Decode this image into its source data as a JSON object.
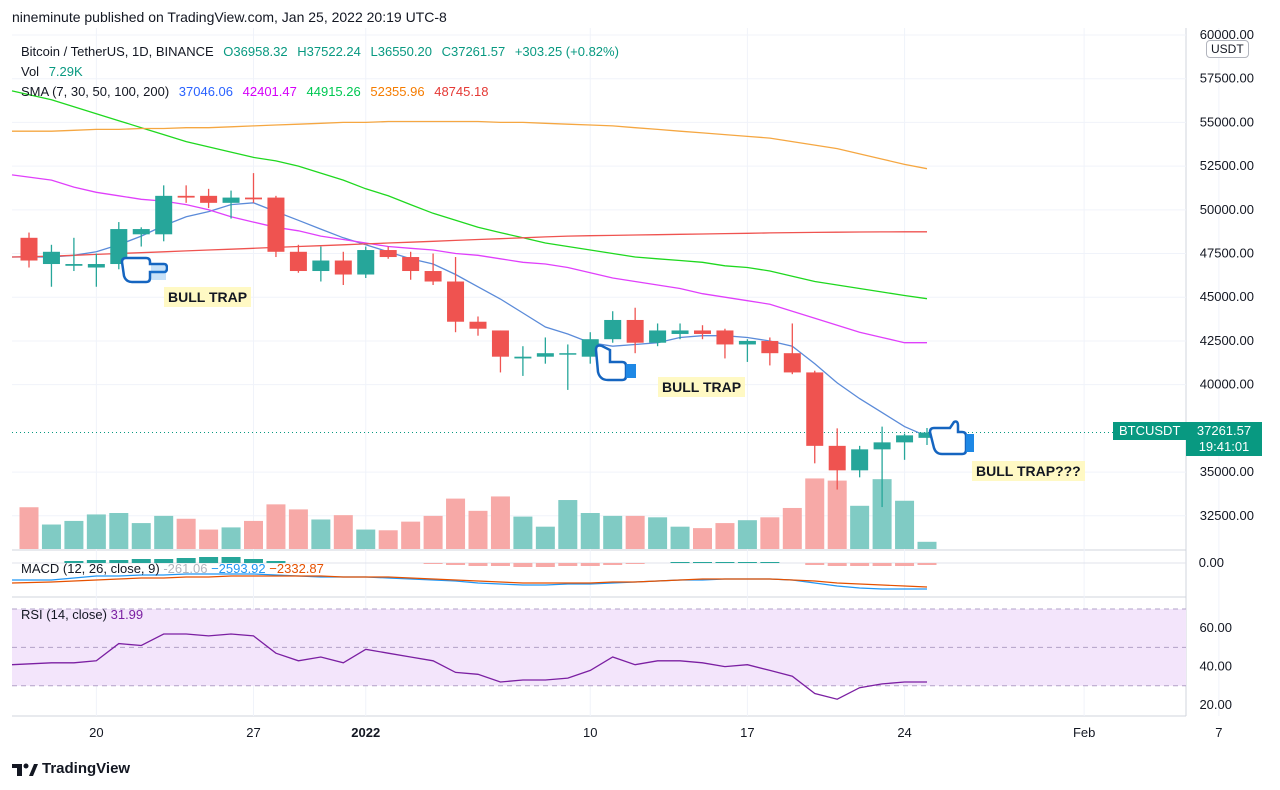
{
  "header": {
    "publisher": "nineminute published on TradingView.com, Jan 25, 2022 20:19 UTC-8"
  },
  "legend": {
    "symbol": "Bitcoin / TetherUS, 1D, BINANCE",
    "o": "O36958.32",
    "h": "H37522.24",
    "l": "L36550.20",
    "c": "C37261.57",
    "change": "+303.25 (+0.82%)",
    "vol_label": "Vol",
    "vol_value": "7.29K",
    "sma_label": "SMA (7, 30, 50, 100, 200)",
    "sma_values": [
      "37046.06",
      "42401.47",
      "44915.26",
      "52355.96",
      "48745.18"
    ]
  },
  "colors": {
    "up": "#26a69a",
    "down": "#ef5350",
    "up_vol": "#80cbc4",
    "down_vol": "#f7a9a7",
    "sma7": "#5b8bd9",
    "sma30": "#e040fb",
    "sma50": "#1fd81f",
    "sma100": "#f5a742",
    "sma200": "#ef5350",
    "macd": "#2196f3",
    "signal": "#e65100",
    "rsi": "#7b1fa2",
    "rsi_band": "#f3e5fb"
  },
  "macd": {
    "label": "MACD (12, 26, close, 9)",
    "hist": "-261.06",
    "macd": "−2593.92",
    "signal": "−2332.87"
  },
  "rsi": {
    "label": "RSI (14, close)",
    "value": "31.99"
  },
  "currency": "USDT",
  "last_price": {
    "symbol": "BTCUSDT",
    "price": "37261.57",
    "countdown": "19:41:01"
  },
  "annotations": [
    "BULL TRAP",
    "BULL TRAP",
    "BULL TRAP???"
  ],
  "footer": {
    "brand": "TradingView"
  },
  "chart_data": {
    "type": "candlestick",
    "title": "Bitcoin / TetherUS, 1D, BINANCE",
    "x_ticks": [
      "20",
      "27",
      "2022",
      "10",
      "17",
      "24",
      "Feb",
      "7"
    ],
    "x_tick_index": [
      3,
      10,
      15,
      25,
      32,
      39,
      47,
      53
    ],
    "price_ticks": [
      "60000.00",
      "57500.00",
      "55000.00",
      "52500.00",
      "50000.00",
      "47500.00",
      "45000.00",
      "42500.00",
      "40000.00",
      "35000.00",
      "32500.00"
    ],
    "ylim": [
      30200,
      60400
    ],
    "candles": [
      {
        "o": 48400,
        "h": 48700,
        "l": 46700,
        "c": 47100
      },
      {
        "o": 46900,
        "h": 48000,
        "l": 45600,
        "c": 47600
      },
      {
        "o": 46800,
        "h": 48400,
        "l": 46500,
        "c": 46900
      },
      {
        "o": 46700,
        "h": 47500,
        "l": 45600,
        "c": 46900
      },
      {
        "o": 46900,
        "h": 49300,
        "l": 46600,
        "c": 48900
      },
      {
        "o": 48600,
        "h": 49000,
        "l": 47900,
        "c": 48900
      },
      {
        "o": 48600,
        "h": 51400,
        "l": 48200,
        "c": 50800
      },
      {
        "o": 50800,
        "h": 51400,
        "l": 50400,
        "c": 50700
      },
      {
        "o": 50800,
        "h": 51200,
        "l": 50100,
        "c": 50400
      },
      {
        "o": 50400,
        "h": 51100,
        "l": 49500,
        "c": 50700
      },
      {
        "o": 50700,
        "h": 52100,
        "l": 50400,
        "c": 50600
      },
      {
        "o": 50700,
        "h": 50800,
        "l": 47300,
        "c": 47600
      },
      {
        "o": 47600,
        "h": 48000,
        "l": 46400,
        "c": 46500
      },
      {
        "o": 46500,
        "h": 47900,
        "l": 45900,
        "c": 47100
      },
      {
        "o": 47100,
        "h": 47600,
        "l": 45700,
        "c": 46300
      },
      {
        "o": 46300,
        "h": 47900,
        "l": 46100,
        "c": 47700
      },
      {
        "o": 47700,
        "h": 47900,
        "l": 47200,
        "c": 47300
      },
      {
        "o": 47300,
        "h": 47600,
        "l": 46000,
        "c": 46500
      },
      {
        "o": 46500,
        "h": 47500,
        "l": 45700,
        "c": 45900
      },
      {
        "o": 45900,
        "h": 47300,
        "l": 43000,
        "c": 43600
      },
      {
        "o": 43600,
        "h": 43900,
        "l": 42800,
        "c": 43200
      },
      {
        "o": 43100,
        "h": 43100,
        "l": 40700,
        "c": 41600
      },
      {
        "o": 41500,
        "h": 42200,
        "l": 40500,
        "c": 41600
      },
      {
        "o": 41600,
        "h": 42700,
        "l": 41200,
        "c": 41800
      },
      {
        "o": 41800,
        "h": 42300,
        "l": 39700,
        "c": 41800
      },
      {
        "o": 41600,
        "h": 43000,
        "l": 41200,
        "c": 42600
      },
      {
        "o": 42600,
        "h": 44200,
        "l": 42400,
        "c": 43700
      },
      {
        "o": 43700,
        "h": 44400,
        "l": 41800,
        "c": 42400
      },
      {
        "o": 42400,
        "h": 43500,
        "l": 42200,
        "c": 43100
      },
      {
        "o": 42900,
        "h": 43500,
        "l": 42600,
        "c": 43100
      },
      {
        "o": 43100,
        "h": 43400,
        "l": 42600,
        "c": 42900
      },
      {
        "o": 43100,
        "h": 43200,
        "l": 41500,
        "c": 42300
      },
      {
        "o": 42300,
        "h": 42600,
        "l": 41300,
        "c": 42500
      },
      {
        "o": 42500,
        "h": 42700,
        "l": 41100,
        "c": 41800
      },
      {
        "o": 41800,
        "h": 43500,
        "l": 40600,
        "c": 40700
      },
      {
        "o": 40700,
        "h": 40800,
        "l": 35500,
        "c": 36500
      },
      {
        "o": 36500,
        "h": 37500,
        "l": 34000,
        "c": 35100
      },
      {
        "o": 35100,
        "h": 36500,
        "l": 34700,
        "c": 36300
      },
      {
        "o": 36300,
        "h": 37600,
        "l": 33000,
        "c": 36700
      },
      {
        "o": 36700,
        "h": 37200,
        "l": 35700,
        "c": 37100
      },
      {
        "o": 36958,
        "h": 37522,
        "l": 36550,
        "c": 37261
      }
    ],
    "volume_heights": [
      0.58,
      0.34,
      0.39,
      0.48,
      0.5,
      0.36,
      0.46,
      0.42,
      0.27,
      0.3,
      0.39,
      0.62,
      0.55,
      0.41,
      0.47,
      0.27,
      0.26,
      0.38,
      0.46,
      0.7,
      0.53,
      0.73,
      0.45,
      0.31,
      0.68,
      0.5,
      0.46,
      0.46,
      0.44,
      0.31,
      0.29,
      0.36,
      0.4,
      0.44,
      0.57,
      0.98,
      0.95,
      0.6,
      0.97,
      0.67,
      0.1
    ],
    "sma7": [
      47300,
      47300,
      47400,
      47600,
      48000,
      48500,
      49100,
      49600,
      49900,
      50300,
      50400,
      49900,
      49400,
      48900,
      48400,
      48000,
      47600,
      47200,
      46900,
      46300,
      45600,
      44900,
      44100,
      43300,
      42900,
      42400,
      42200,
      42300,
      42400,
      42700,
      42800,
      42800,
      42700,
      42500,
      42200,
      41200,
      40100,
      39200,
      38400,
      37600,
      37046
    ],
    "sma30": [
      52000,
      51700,
      51300,
      51000,
      50800,
      50600,
      50500,
      50300,
      50000,
      49600,
      49300,
      49000,
      48800,
      48500,
      48300,
      48100,
      47900,
      47800,
      47700,
      47500,
      47400,
      47200,
      47000,
      46900,
      46700,
      46400,
      46100,
      45900,
      45700,
      45500,
      45200,
      45000,
      44800,
      44600,
      44200,
      43800,
      43400,
      43000,
      42700,
      42401,
      42401
    ],
    "sma50": [
      56800,
      56300,
      55900,
      55500,
      55100,
      54700,
      54300,
      53900,
      53600,
      53300,
      53000,
      52800,
      52500,
      52100,
      51700,
      51200,
      50800,
      50300,
      49800,
      49400,
      49000,
      48700,
      48400,
      48100,
      47900,
      47700,
      47500,
      47300,
      47200,
      47100,
      47000,
      46800,
      46700,
      46500,
      46200,
      45900,
      45700,
      45500,
      45300,
      45100,
      44915
    ],
    "sma100": [
      54500,
      54500,
      54550,
      54600,
      54600,
      54650,
      54650,
      54700,
      54700,
      54750,
      54800,
      54850,
      54900,
      54950,
      55000,
      55000,
      55050,
      55050,
      55050,
      55050,
      55050,
      55000,
      55000,
      54950,
      54900,
      54850,
      54800,
      54700,
      54600,
      54500,
      54400,
      54300,
      54200,
      54100,
      53900,
      53700,
      53500,
      53200,
      52900,
      52600,
      52355
    ],
    "sma200": [
      47300,
      47350,
      47400,
      47450,
      47500,
      47550,
      47600,
      47650,
      47700,
      47750,
      47800,
      47850,
      47900,
      47950,
      48000,
      48050,
      48100,
      48150,
      48200,
      48250,
      48300,
      48350,
      48400,
      48450,
      48500,
      48520,
      48540,
      48560,
      48580,
      48600,
      48620,
      48640,
      48660,
      48680,
      48700,
      48710,
      48720,
      48730,
      48740,
      48745,
      48745
    ],
    "macd_line": [
      580,
      580,
      578,
      576,
      576,
      575,
      575,
      574,
      574,
      574,
      574,
      575,
      576,
      577,
      577,
      577,
      578,
      579,
      580,
      581,
      583,
      584,
      585,
      585,
      584,
      584,
      583,
      582,
      581,
      580,
      580,
      579,
      579,
      579,
      580,
      583,
      586,
      588,
      589,
      589,
      589
    ],
    "signal_line": [
      583,
      582,
      581,
      580,
      579,
      578,
      578,
      577,
      577,
      576,
      576,
      576,
      576,
      576,
      577,
      577,
      577,
      578,
      579,
      580,
      581,
      582,
      583,
      583,
      583,
      583,
      582,
      582,
      581,
      580,
      579,
      579,
      579,
      579,
      580,
      581,
      583,
      584,
      585,
      586,
      587
    ],
    "macd_hist": [
      0,
      0,
      -2,
      -3,
      -3,
      -4,
      -4,
      -5,
      -6,
      -6,
      -4,
      -2,
      0,
      0,
      0,
      0,
      0,
      0,
      1,
      2,
      3,
      3,
      4,
      4,
      3,
      3,
      2,
      1,
      0,
      -1,
      -1,
      -1,
      -1,
      -1,
      0,
      2,
      3,
      3,
      3,
      3,
      2
    ],
    "rsi_ticks": [
      "60.00",
      "40.00",
      "20.00"
    ],
    "rsi_values": [
      41,
      42,
      42,
      43,
      52,
      51,
      57,
      57,
      56,
      57,
      56,
      47,
      43,
      45,
      42,
      49,
      47,
      45,
      43,
      37,
      36,
      32,
      33,
      33,
      34,
      38,
      45,
      41,
      43,
      43,
      42,
      40,
      41,
      38,
      35,
      26,
      23,
      29,
      31,
      32,
      31.99
    ]
  }
}
